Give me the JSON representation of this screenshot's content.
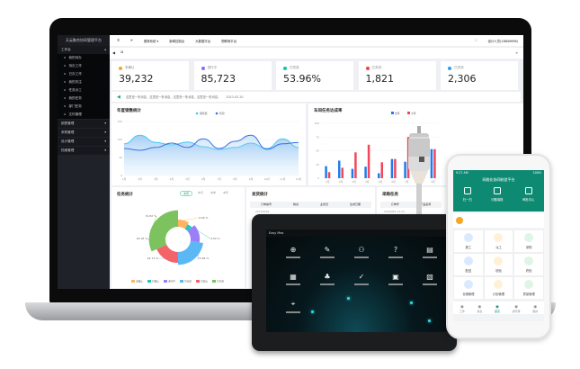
{
  "app": {
    "title": "天云聚合协同管理平台"
  },
  "sidebar": {
    "workbench": "工作台",
    "items": [
      "我的待办",
      "待办工作",
      "已办工作",
      "我的关注",
      "任务派工",
      "我的任务",
      "部门任务",
      "文件管理"
    ],
    "groups": [
      "销售管理",
      "采购管理",
      "设计管理",
      "档案管理"
    ]
  },
  "topbar": {
    "menu": [
      "更换系统 ▾",
      "新闻控制台",
      "大数据平台",
      "物联网平台"
    ],
    "user": "设计人员(18849696)"
  },
  "cards": [
    {
      "label": "未确认",
      "value": "39,232",
      "color": "#f5a623"
    },
    {
      "label": "进行中",
      "value": "85,723",
      "color": "#8b6cf6"
    },
    {
      "label": "已完成",
      "value": "53.96%",
      "color": "#18c2b0"
    },
    {
      "label": "已关闭",
      "value": "1,821",
      "color": "#f0443d"
    },
    {
      "label": "已关闭",
      "value": "2,306",
      "color": "#2a9df4"
    }
  ],
  "notice": {
    "text": "这里是一条消息，这里是一条消息，这里是一条消息，这里是一条消息。",
    "date": "2023-03-20"
  },
  "chart_data": [
    {
      "type": "area",
      "title": "年度销售统计",
      "categories": [
        "1月",
        "2月",
        "3月",
        "4月",
        "5月",
        "6月",
        "7月",
        "8月",
        "9月",
        "10月",
        "11月",
        "12月"
      ],
      "ylim": [
        0,
        150
      ],
      "yticks": [
        0,
        50,
        100,
        150
      ],
      "series": [
        {
          "name": "销售额",
          "color": "#3fcdf5",
          "values": [
            88,
            112,
            92,
            85,
            93,
            80,
            72,
            78,
            90,
            75,
            102,
            78
          ]
        },
        {
          "name": "利润",
          "color": "#3b6fe6",
          "values": [
            75,
            70,
            78,
            90,
            78,
            102,
            75,
            95,
            112,
            73,
            88,
            92
          ]
        }
      ]
    },
    {
      "type": "bar",
      "title": "车间任务达成率",
      "categories": [
        "1月",
        "2月",
        "3月",
        "4月",
        "5月",
        "6月",
        "7月",
        "8月",
        "9月"
      ],
      "ylim": [
        0,
        100
      ],
      "yticks": [
        0,
        25,
        50,
        75,
        100
      ],
      "series": [
        {
          "name": "去年",
          "color": "#1e7cf0",
          "values": [
            22,
            32,
            17,
            21,
            9,
            35,
            30,
            20,
            53
          ]
        },
        {
          "name": "今年",
          "color": "#f0485a",
          "values": [
            11,
            19,
            47,
            61,
            29,
            35,
            75,
            20,
            53
          ]
        }
      ]
    },
    {
      "type": "pie",
      "title": "任务统计",
      "labels": [
        "未确认",
        "已确认",
        "进行中",
        "已完成",
        "已验证",
        "已关闭"
      ],
      "values": [
        9.09,
        4.54,
        13.64,
        22.73,
        18.18,
        31.82
      ],
      "value_labels": [
        "9.09 %",
        "4.54 %",
        "13.64 %",
        "22.73 %",
        "18.18 %",
        "31.82 %"
      ],
      "colors": [
        "#fdb462",
        "#22c7b5",
        "#9b7ff7",
        "#5bb8f5",
        "#f3636a",
        "#7cc35f"
      ],
      "legend": "bottom"
    }
  ],
  "task_tabs": [
    "本周",
    "本月",
    "本季",
    "本年"
  ],
  "shipping": {
    "title": "发货统计",
    "headers": [
      "订单编号",
      "物资",
      "业务员",
      "生成日期"
    ],
    "row": [
      "20122099"
    ]
  },
  "purchase": {
    "title": "采购任务",
    "headers": [
      "订单号",
      "产品名称"
    ],
    "row": [
      "2004065-12-01"
    ]
  },
  "tablet": {
    "brand": "Easy Mes"
  },
  "phone": {
    "status": "9:27 AM",
    "battery": "100%",
    "title": "网络化协同制造平台",
    "quick": [
      "扫一扫",
      "问题填报",
      "审批中心"
    ],
    "grid": [
      "报工",
      "派工",
      "采购",
      "配送",
      "检验",
      "终检",
      "仓储管理",
      "计划管理",
      "质量管理"
    ],
    "nav": [
      "工作",
      "消息",
      "首页",
      "通讯录",
      "我的"
    ]
  }
}
